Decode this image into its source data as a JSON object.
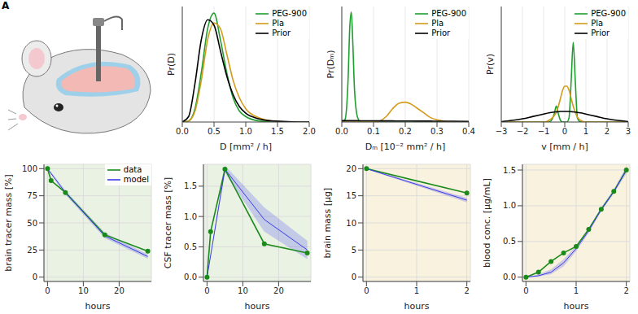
{
  "panel_label": "A",
  "chart_data": [
    {
      "type": "line",
      "x_label": "D [mm² / h]",
      "y_label": "Pr(D)",
      "x": [
        0,
        0.1,
        0.2,
        0.3,
        0.4,
        0.5,
        0.6,
        0.7,
        0.8,
        0.9,
        1.0,
        1.2,
        1.4,
        1.6,
        1.8,
        2.0
      ],
      "series": [
        {
          "name": "PEG-900",
          "color": "#1f9e2f",
          "line_style": "solid",
          "values": [
            0,
            0.01,
            0.12,
            0.45,
            0.85,
            0.99,
            0.75,
            0.45,
            0.22,
            0.1,
            0.05,
            0.01,
            0,
            0,
            0,
            0
          ]
        },
        {
          "name": "Pla",
          "color": "#d49a1a",
          "line_style": "solid",
          "values": [
            0,
            0.01,
            0.1,
            0.38,
            0.75,
            0.9,
            0.85,
            0.62,
            0.38,
            0.22,
            0.12,
            0.04,
            0.01,
            0,
            0,
            0
          ]
        },
        {
          "name": "Prior",
          "color": "#000000",
          "line_style": "solid",
          "values": [
            0,
            0.05,
            0.35,
            0.75,
            0.93,
            0.88,
            0.65,
            0.42,
            0.25,
            0.14,
            0.08,
            0.03,
            0.01,
            0.005,
            0,
            0
          ]
        }
      ],
      "xlim": [
        0,
        2
      ],
      "xticks": [
        {
          "value": 0,
          "label": "0.0"
        },
        {
          "value": 0.5,
          "label": "0.5"
        },
        {
          "value": 1,
          "label": "1.0"
        },
        {
          "value": 1.5,
          "label": "1.5"
        },
        {
          "value": 2,
          "label": "2.0"
        }
      ],
      "ylim": [
        0,
        1.05
      ],
      "grid": true,
      "legend": "upper right",
      "tick_labels": "x"
    },
    {
      "type": "line",
      "x_label": "Dₘ [10⁻² mm² / h]",
      "y_label": "Pr(Dₘ)",
      "x": [
        0,
        0.01,
        0.02,
        0.025,
        0.03,
        0.035,
        0.04,
        0.05,
        0.06,
        0.08,
        0.1,
        0.12,
        0.14,
        0.16,
        0.18,
        0.2,
        0.22,
        0.24,
        0.26,
        0.28,
        0.3,
        0.35,
        0.4
      ],
      "series": [
        {
          "name": "PEG-900",
          "color": "#1f9e2f",
          "line_style": "solid",
          "values": [
            0,
            0.02,
            0.4,
            0.85,
            1.0,
            0.7,
            0.3,
            0.04,
            0,
            0,
            0,
            0,
            0,
            0,
            0,
            0,
            0,
            0,
            0,
            0,
            0,
            0,
            0
          ]
        },
        {
          "name": "Pla",
          "color": "#d49a1a",
          "line_style": "solid",
          "values": [
            0,
            0,
            0,
            0,
            0,
            0,
            0,
            0,
            0,
            0,
            0,
            0.01,
            0.05,
            0.12,
            0.17,
            0.18,
            0.16,
            0.12,
            0.08,
            0.04,
            0.02,
            0,
            0
          ]
        },
        {
          "name": "Prior",
          "color": "#000000",
          "line_style": "solid",
          "values": [
            0.012,
            0.012,
            0.012,
            0.012,
            0.012,
            0.012,
            0.012,
            0.012,
            0.011,
            0.011,
            0.011,
            0.01,
            0.01,
            0.01,
            0.009,
            0.009,
            0.009,
            0.008,
            0.008,
            0.008,
            0.007,
            0.007,
            0.006
          ]
        }
      ],
      "xlim": [
        0,
        0.4
      ],
      "xticks": [
        {
          "value": 0,
          "label": "0.0"
        },
        {
          "value": 0.1,
          "label": "0.1"
        },
        {
          "value": 0.2,
          "label": "0.2"
        },
        {
          "value": 0.3,
          "label": "0.3"
        },
        {
          "value": 0.4,
          "label": "0.4"
        }
      ],
      "ylim": [
        0,
        1.05
      ],
      "grid": true,
      "legend": "upper right",
      "tick_labels": "x"
    },
    {
      "type": "line",
      "x_label": "v [mm / h]",
      "y_label": "Pr(v)",
      "x": [
        -3,
        -2.5,
        -2,
        -1.5,
        -1,
        -0.75,
        -0.5,
        -0.4,
        -0.3,
        -0.2,
        -0.1,
        0,
        0.1,
        0.2,
        0.3,
        0.4,
        0.5,
        0.6,
        0.75,
        1,
        1.5,
        2,
        2.5,
        3
      ],
      "series": [
        {
          "name": "PEG-900",
          "color": "#1f9e2f",
          "line_style": "solid",
          "values": [
            0,
            0,
            0,
            0,
            0,
            0,
            0.1,
            0.2,
            0.1,
            0.02,
            0,
            0,
            0,
            0.05,
            0.5,
            1.0,
            0.5,
            0.05,
            0,
            0,
            0,
            0,
            0,
            0
          ]
        },
        {
          "name": "Pla",
          "color": "#d49a1a",
          "line_style": "solid",
          "values": [
            0,
            0,
            0,
            0,
            0,
            0.02,
            0.08,
            0.12,
            0.2,
            0.3,
            0.4,
            0.45,
            0.45,
            0.4,
            0.3,
            0.2,
            0.12,
            0.06,
            0.02,
            0,
            0,
            0,
            0,
            0
          ]
        },
        {
          "name": "Prior",
          "color": "#000000",
          "line_style": "solid",
          "values": [
            0.005,
            0.02,
            0.04,
            0.07,
            0.1,
            0.115,
            0.125,
            0.128,
            0.13,
            0.132,
            0.133,
            0.133,
            0.133,
            0.132,
            0.13,
            0.128,
            0.125,
            0.12,
            0.115,
            0.1,
            0.07,
            0.04,
            0.02,
            0.005
          ]
        }
      ],
      "xlim": [
        -3,
        3
      ],
      "xticks": [
        {
          "value": -3,
          "label": "−3"
        },
        {
          "value": -2,
          "label": "−2"
        },
        {
          "value": -1,
          "label": "−1"
        },
        0,
        1,
        2,
        3
      ],
      "ylim": [
        0,
        1.45
      ],
      "grid": true,
      "legend": "upper right",
      "tick_labels": "x"
    },
    {
      "type": "line",
      "x_label": "hours",
      "y_label": "brain tracer mass [%]",
      "series": [
        {
          "name": "data",
          "color": "#1a8a1a",
          "marker": "circle",
          "line_style": "solid",
          "x": [
            0,
            1,
            5,
            16,
            28
          ],
          "values": [
            100,
            89,
            78,
            39,
            24
          ]
        },
        {
          "name": "model",
          "color": "#3b3bea",
          "line_style": "solid",
          "x": [
            0,
            5,
            16,
            28
          ],
          "values": [
            100,
            78,
            38,
            19
          ],
          "lower": [
            99,
            76,
            36,
            17
          ],
          "upper": [
            101,
            80,
            41,
            21
          ]
        }
      ],
      "xlim": [
        -1,
        29
      ],
      "xticks": [
        0,
        10,
        20
      ],
      "ylim": [
        -4,
        104
      ],
      "yticks": [
        0,
        25,
        50,
        75,
        100
      ],
      "grid": true,
      "legend": "upper right"
    },
    {
      "type": "line",
      "x_label": "hours",
      "y_label": "CSF tracer mass [%]",
      "series": [
        {
          "name": "data",
          "color": "#1a8a1a",
          "marker": "circle",
          "line_style": "solid",
          "x": [
            0,
            1,
            5,
            16,
            28
          ],
          "values": [
            0,
            0.75,
            1.78,
            0.55,
            0.4
          ]
        },
        {
          "name": "model",
          "color": "#3b3bea",
          "line_style": "solid",
          "x": [
            0,
            5,
            16,
            28
          ],
          "values": [
            0,
            1.78,
            0.95,
            0.45
          ],
          "lower": [
            0,
            1.72,
            0.75,
            0.3
          ],
          "upper": [
            0,
            1.84,
            1.15,
            0.6
          ]
        }
      ],
      "xlim": [
        -1,
        29
      ],
      "xticks": [
        0,
        10,
        20
      ],
      "ylim": [
        -0.07,
        1.86
      ],
      "yticks": [
        {
          "value": 0,
          "label": "0.0"
        },
        {
          "value": 0.5,
          "label": "0.5"
        },
        {
          "value": 1,
          "label": "1.0"
        },
        {
          "value": 1.5,
          "label": "1.5"
        }
      ],
      "grid": true
    },
    {
      "type": "line",
      "x_label": "hours",
      "y_label": "brain mass [μg]",
      "series": [
        {
          "name": "data",
          "color": "#1a8a1a",
          "marker": "circle",
          "line_style": "solid",
          "x": [
            0,
            2
          ],
          "values": [
            20,
            15.5
          ]
        },
        {
          "name": "model",
          "color": "#3b3bea",
          "line_style": "solid",
          "x": [
            0,
            2
          ],
          "values": [
            20,
            14.2
          ],
          "lower": [
            19.9,
            13.8
          ],
          "upper": [
            20.1,
            14.6
          ]
        }
      ],
      "xlim": [
        -0.07,
        2.07
      ],
      "xticks": [
        0,
        1,
        2
      ],
      "ylim": [
        -0.8,
        20.8
      ],
      "yticks": [
        0,
        5,
        10,
        15,
        20
      ],
      "grid": true
    },
    {
      "type": "line",
      "x_label": "hours",
      "y_label": "blood conc. [μg/mL]",
      "series": [
        {
          "name": "data",
          "color": "#1a8a1a",
          "marker": "circle",
          "line_style": "solid",
          "x": [
            0,
            0.25,
            0.5,
            0.75,
            1,
            1.25,
            1.5,
            1.75,
            2
          ],
          "values": [
            0,
            0.07,
            0.22,
            0.34,
            0.43,
            0.67,
            0.95,
            1.2,
            1.5
          ]
        },
        {
          "name": "model",
          "color": "#3b3bea",
          "line_style": "solid",
          "x": [
            0,
            0.25,
            0.5,
            0.75,
            1,
            1.25,
            1.5,
            1.75,
            2
          ],
          "values": [
            0,
            0.02,
            0.07,
            0.2,
            0.4,
            0.65,
            0.95,
            1.2,
            1.5
          ],
          "lower": [
            0,
            0.01,
            0.04,
            0.15,
            0.36,
            0.62,
            0.92,
            1.17,
            1.45
          ],
          "upper": [
            0,
            0.04,
            0.11,
            0.25,
            0.44,
            0.69,
            0.98,
            1.23,
            1.55
          ]
        }
      ],
      "xlim": [
        -0.07,
        2.07
      ],
      "xticks": [
        0,
        1,
        2
      ],
      "ylim": [
        -0.06,
        1.58
      ],
      "yticks": [
        {
          "value": 0,
          "label": "0.0"
        },
        {
          "value": 0.5,
          "label": "0.5"
        },
        {
          "value": 1,
          "label": "1.0"
        },
        {
          "value": 1.5,
          "label": "1.5"
        }
      ],
      "grid": true
    }
  ]
}
